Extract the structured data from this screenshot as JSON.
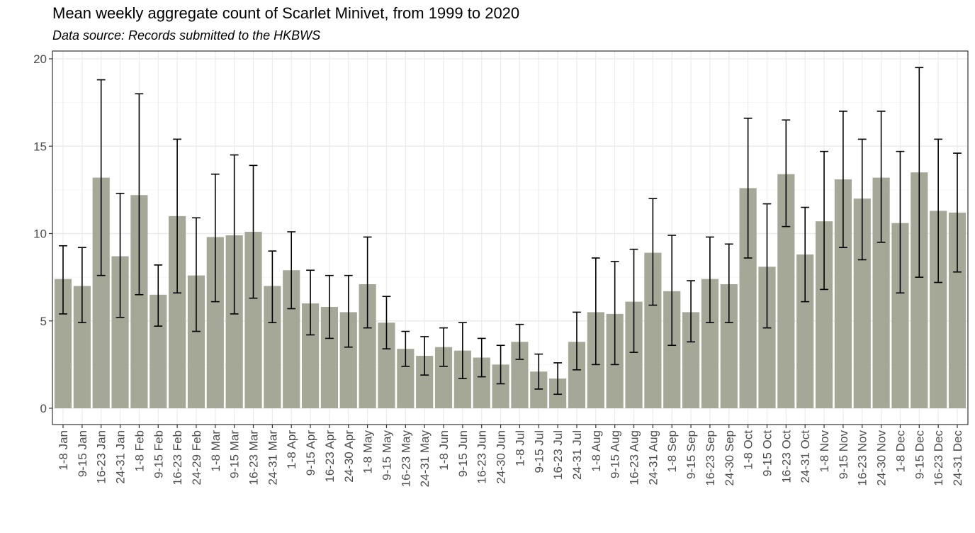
{
  "chart_data": {
    "type": "bar",
    "title": "Mean weekly aggregate count of Scarlet Minivet, from 1999 to 2020",
    "subtitle": "Data source: Records submitted to the HKBWS",
    "xlabel": "",
    "ylabel": "",
    "ylim": [
      0,
      20
    ],
    "yticks": [
      0,
      5,
      10,
      15,
      20
    ],
    "grid": true,
    "legend": "none",
    "bar_color": "#a5a797",
    "error_bar_color": "#000000",
    "categories": [
      "1-8 Jan",
      "9-15 Jan",
      "16-23 Jan",
      "24-31 Jan",
      "1-8 Feb",
      "9-15 Feb",
      "16-23 Feb",
      "24-29 Feb",
      "1-8 Mar",
      "9-15 Mar",
      "16-23 Mar",
      "24-31 Mar",
      "1-8 Apr",
      "9-15 Apr",
      "16-23 Apr",
      "24-30 Apr",
      "1-8 May",
      "9-15 May",
      "16-23 May",
      "24-31 May",
      "1-8 Jun",
      "9-15 Jun",
      "16-23 Jun",
      "24-30 Jun",
      "1-8 Jul",
      "9-15 Jul",
      "16-23 Jul",
      "24-31 Jul",
      "1-8 Aug",
      "9-15 Aug",
      "16-23 Aug",
      "24-31 Aug",
      "1-8 Sep",
      "9-15 Sep",
      "16-23 Sep",
      "24-30 Sep",
      "1-8 Oct",
      "9-15 Oct",
      "16-23 Oct",
      "24-31 Oct",
      "1-8 Nov",
      "9-15 Nov",
      "16-23 Nov",
      "24-30 Nov",
      "1-8 Dec",
      "9-15 Dec",
      "16-23 Dec",
      "24-31 Dec"
    ],
    "values": [
      7.4,
      7.0,
      13.2,
      8.7,
      12.2,
      6.5,
      11.0,
      7.6,
      9.8,
      9.9,
      10.1,
      7.0,
      7.9,
      6.0,
      5.8,
      5.5,
      7.1,
      4.9,
      3.4,
      3.0,
      3.5,
      3.3,
      2.9,
      2.5,
      3.8,
      2.1,
      1.7,
      3.8,
      5.5,
      5.4,
      6.1,
      8.9,
      6.7,
      5.5,
      7.4,
      7.1,
      12.6,
      8.1,
      13.4,
      8.8,
      10.7,
      13.1,
      12.0,
      13.2,
      10.6,
      13.5,
      11.3,
      11.2
    ],
    "error_low": [
      5.4,
      4.9,
      7.6,
      5.2,
      6.5,
      4.7,
      6.6,
      4.4,
      6.1,
      5.4,
      6.3,
      4.9,
      5.7,
      4.2,
      4.0,
      3.5,
      4.6,
      3.4,
      2.4,
      1.9,
      2.4,
      1.7,
      1.8,
      1.4,
      2.8,
      1.1,
      0.8,
      2.2,
      2.5,
      2.5,
      3.2,
      5.9,
      3.6,
      3.8,
      4.9,
      4.9,
      8.6,
      4.6,
      10.4,
      6.1,
      6.8,
      9.2,
      8.5,
      9.5,
      6.6,
      7.5,
      7.2,
      7.8
    ],
    "error_high": [
      9.3,
      9.2,
      18.8,
      12.3,
      18.0,
      8.2,
      15.4,
      10.9,
      13.4,
      14.5,
      13.9,
      9.0,
      10.1,
      7.9,
      7.6,
      7.6,
      9.8,
      6.4,
      4.4,
      4.1,
      4.6,
      4.9,
      4.0,
      3.6,
      4.8,
      3.1,
      2.6,
      5.5,
      8.6,
      8.4,
      9.1,
      12.0,
      9.9,
      7.3,
      9.8,
      9.4,
      16.6,
      11.7,
      16.5,
      11.5,
      14.7,
      17.0,
      15.4,
      17.0,
      14.7,
      19.5,
      15.4,
      14.6
    ]
  }
}
